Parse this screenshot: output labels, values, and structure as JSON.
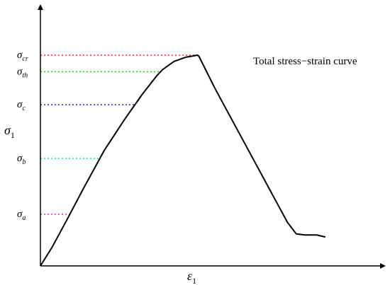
{
  "chart_data": {
    "type": "line",
    "title": "",
    "annotation": "Total stress−strain curve",
    "xlabel": {
      "symbol": "ε",
      "subscript": "1"
    },
    "ylabel": {
      "symbol": "σ",
      "subscript": "1"
    },
    "xlim": [
      0,
      1
    ],
    "ylim": [
      0,
      1
    ],
    "grid": false,
    "curve_color": "#000000",
    "series": [
      {
        "x": [
          0,
          0.04,
          0.09,
          0.15,
          0.22,
          0.29,
          0.35,
          0.4,
          0.42,
          0.44,
          0.46,
          0.48,
          0.5,
          0.52,
          0.54,
          0.545,
          0.6,
          0.65,
          0.7,
          0.75,
          0.8,
          0.85,
          0.88,
          0.91,
          0.95,
          0.98
        ],
        "y": [
          0,
          0.09,
          0.22,
          0.38,
          0.56,
          0.71,
          0.83,
          0.92,
          0.95,
          0.97,
          0.99,
          1.0,
          1.01,
          1.015,
          1.02,
          1.015,
          0.86,
          0.73,
          0.6,
          0.47,
          0.34,
          0.21,
          0.155,
          0.15,
          0.15,
          0.14
        ]
      }
    ],
    "thresholds": [
      {
        "symbol": "σ",
        "subscript": "cr",
        "value": 1.02,
        "color": "#ff2a2a"
      },
      {
        "symbol": "σ",
        "subscript": "th",
        "value": 0.94,
        "color": "#22cc22"
      },
      {
        "symbol": "σ",
        "subscript": "c",
        "value": 0.78,
        "color": "#2222cc"
      },
      {
        "symbol": "σ",
        "subscript": "b",
        "value": 0.52,
        "color": "#22cccc"
      },
      {
        "symbol": "σ",
        "subscript": "a",
        "value": 0.25,
        "color": "#ee22ee"
      }
    ]
  }
}
